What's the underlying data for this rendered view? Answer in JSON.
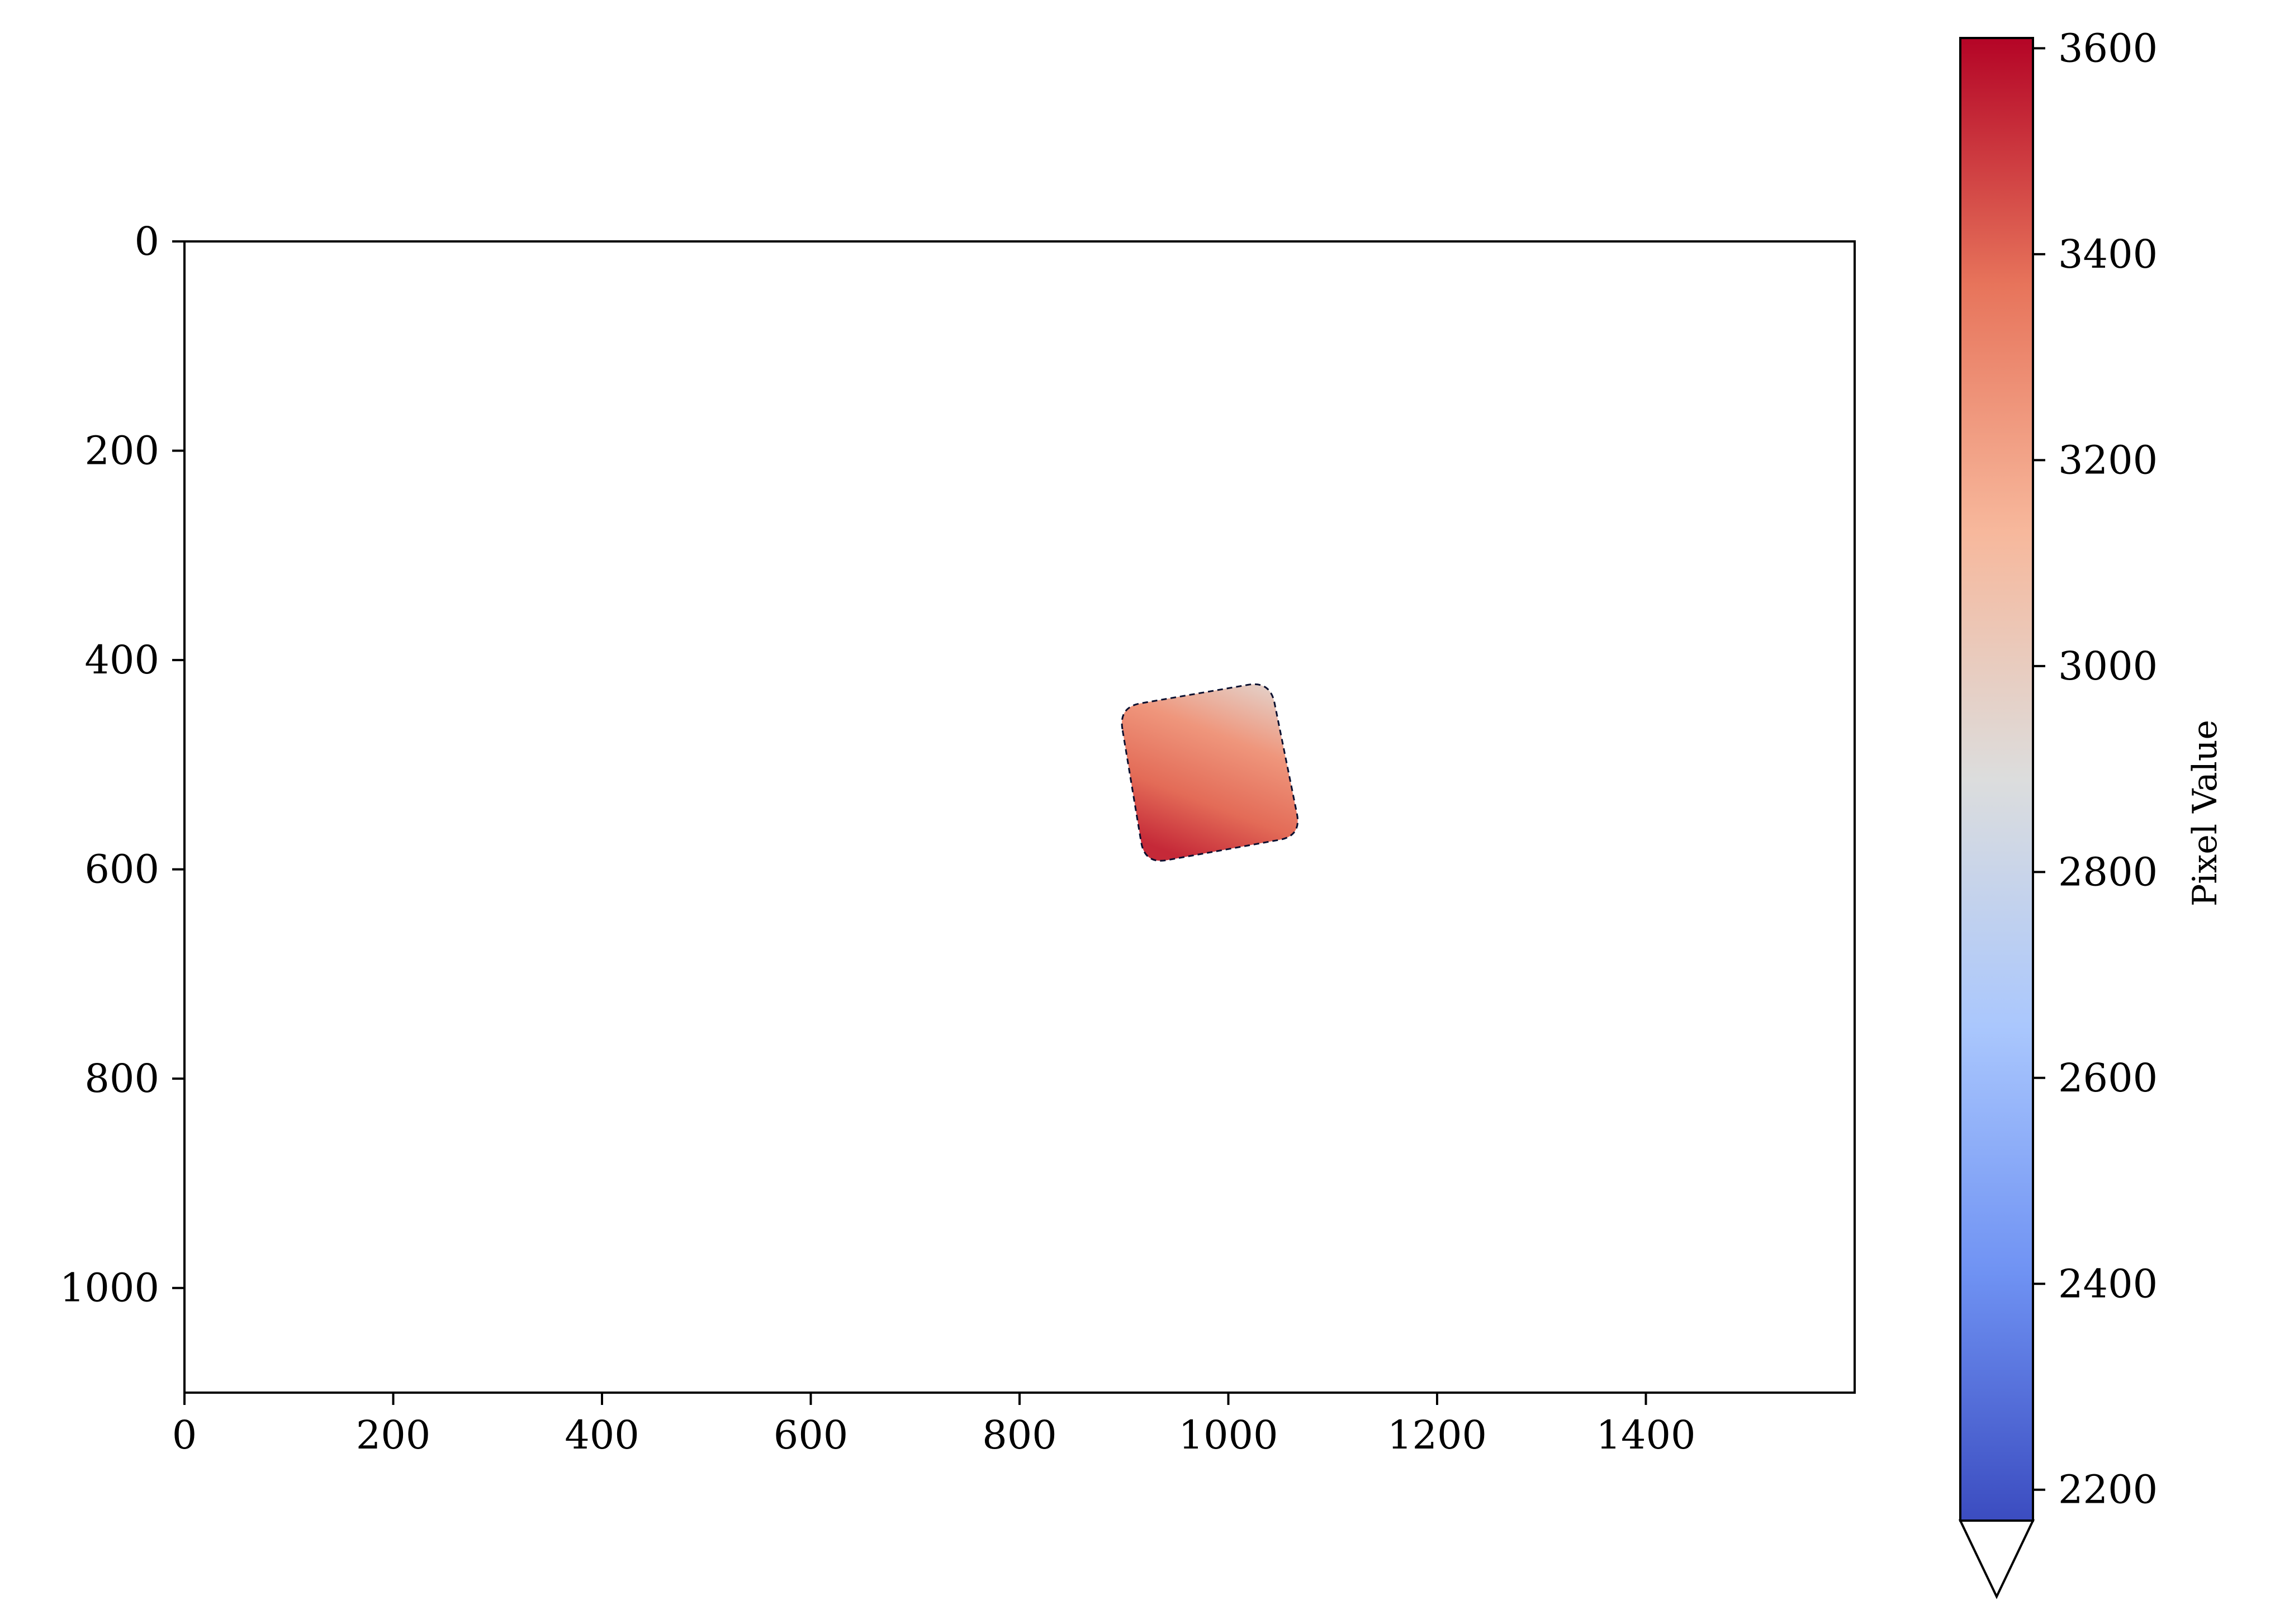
{
  "chart_data": {
    "type": "heatmap",
    "xlim": [
      0,
      1600
    ],
    "ylim": [
      1100,
      0
    ],
    "x_ticks": [
      0,
      200,
      400,
      600,
      800,
      1000,
      1200,
      1400
    ],
    "x_tick_labels": [
      "0",
      "200",
      "400",
      "600",
      "800",
      "1000",
      "1200",
      "1400"
    ],
    "y_ticks": [
      0,
      200,
      400,
      600,
      800,
      1000
    ],
    "y_tick_labels": [
      "0",
      "200",
      "400",
      "600",
      "800",
      "1000"
    ],
    "grid": false,
    "region": {
      "description_shape": "rounded quadrilateral with dashed outline",
      "corners": [
        [
          895,
          445
        ],
        [
          1040,
          420
        ],
        [
          1070,
          568
        ],
        [
          920,
          595
        ]
      ],
      "value_range": [
        2900,
        3560
      ],
      "typical_value": 3330,
      "brightest_corner_value": 2950,
      "darkest_corner_value": 3530
    },
    "colorbar": {
      "label": "Pixel Value",
      "colormap": "coolwarm",
      "vmin": 2170,
      "vmax": 3610,
      "ticks": [
        2200,
        2400,
        2600,
        2800,
        3000,
        3200,
        3400,
        3600
      ],
      "tick_labels": [
        "2200",
        "2400",
        "2600",
        "2800",
        "3000",
        "3200",
        "3400",
        "3600"
      ],
      "extend": "min",
      "colors": [
        "#3b4cc0",
        "#6f92f3",
        "#aac7fd",
        "#dcdddd",
        "#f7b89c",
        "#e7745b",
        "#b40426"
      ]
    }
  }
}
